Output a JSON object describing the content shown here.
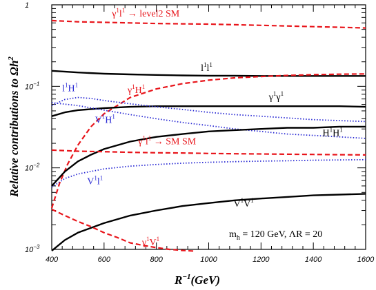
{
  "chart_data": {
    "type": "line",
    "xlabel": "R",
    "xlabel_exp": "−1",
    "xlabel_unit": "(GeV)",
    "ylabel": "Relative contributions to Ωh",
    "ylabel_exp": "2",
    "xlim": [
      400,
      1600
    ],
    "ylim": [
      0.001,
      1
    ],
    "y_scale": "log",
    "x_ticks": [
      400,
      600,
      800,
      1000,
      1200,
      1400,
      1600
    ],
    "y_ticks": [
      {
        "value": 1,
        "base": "1",
        "exp": ""
      },
      {
        "value": 0.1,
        "base": "10",
        "exp": "−1"
      },
      {
        "value": 0.01,
        "base": "10",
        "exp": "−2"
      },
      {
        "value": 0.001,
        "base": "10",
        "exp": "−3"
      }
    ],
    "annotation": {
      "text_main": "m",
      "text_sub": "h",
      "text_rest": " = 120 GeV, ΛR = 20"
    },
    "series": [
      {
        "name": "γ¹l¹ → level2 SM",
        "label_parts": [
          [
            "γ",
            ""
          ],
          [
            "1",
            "sup"
          ],
          [
            "l",
            ""
          ],
          [
            "1",
            "sup"
          ],
          [
            " → level2 SM",
            ""
          ]
        ],
        "label_at": [
          630,
          0.72
        ],
        "color": "#e8141a",
        "style": "dashed",
        "x": [
          400,
          500,
          600,
          700,
          800,
          900,
          1000,
          1100,
          1200,
          1300,
          1400,
          1500,
          1600
        ],
        "values": [
          0.64,
          0.62,
          0.61,
          0.6,
          0.59,
          0.585,
          0.58,
          0.57,
          0.56,
          0.55,
          0.54,
          0.53,
          0.52
        ]
      },
      {
        "name": "l¹l¹",
        "label_parts": [
          [
            "l",
            ""
          ],
          [
            "1",
            "sup"
          ],
          [
            "l",
            ""
          ],
          [
            "1",
            "sup"
          ]
        ],
        "label_at": [
          970,
          0.155
        ],
        "color": "#000000",
        "style": "solid",
        "x": [
          400,
          500,
          600,
          700,
          800,
          900,
          1000,
          1100,
          1200,
          1300,
          1400,
          1500,
          1600
        ],
        "values": [
          0.155,
          0.148,
          0.143,
          0.14,
          0.138,
          0.136,
          0.135,
          0.135,
          0.134,
          0.134,
          0.134,
          0.134,
          0.134
        ]
      },
      {
        "name": "γ¹H¹",
        "label_parts": [
          [
            "γ",
            ""
          ],
          [
            "1",
            "sup"
          ],
          [
            "H",
            ""
          ],
          [
            "1",
            "sup"
          ]
        ],
        "label_at": [
          690,
          0.083
        ],
        "color": "#e8141a",
        "style": "dashed",
        "x": [
          400,
          430,
          460,
          500,
          550,
          600,
          700,
          800,
          900,
          1000,
          1100,
          1200,
          1300,
          1400,
          1500,
          1600
        ],
        "values": [
          0.0032,
          0.0065,
          0.011,
          0.019,
          0.032,
          0.046,
          0.073,
          0.093,
          0.108,
          0.119,
          0.127,
          0.132,
          0.136,
          0.139,
          0.141,
          0.142
        ]
      },
      {
        "name": "γ¹γ¹",
        "label_parts": [
          [
            "γ",
            ""
          ],
          [
            "1",
            "sup"
          ],
          [
            "γ",
            ""
          ],
          [
            "1",
            "sup"
          ]
        ],
        "label_at": [
          1230,
          0.068
        ],
        "color": "#000000",
        "style": "solid",
        "x": [
          400,
          450,
          500,
          600,
          700,
          800,
          900,
          1000,
          1100,
          1200,
          1300,
          1400,
          1500,
          1600
        ],
        "values": [
          0.043,
          0.048,
          0.051,
          0.054,
          0.056,
          0.057,
          0.057,
          0.057,
          0.057,
          0.057,
          0.057,
          0.057,
          0.057,
          0.056
        ]
      },
      {
        "name": "l¹H¹",
        "label_parts": [
          [
            "l",
            ""
          ],
          [
            "1",
            "sup"
          ],
          [
            "H",
            ""
          ],
          [
            "1",
            "sup"
          ]
        ],
        "label_at": [
          440,
          0.087
        ],
        "color": "#2a2ad4",
        "style": "dotted",
        "x": [
          400,
          450,
          500,
          550,
          600,
          700,
          800,
          900,
          1000,
          1100,
          1200,
          1300,
          1400,
          1500,
          1600
        ],
        "values": [
          0.058,
          0.069,
          0.073,
          0.071,
          0.067,
          0.061,
          0.056,
          0.052,
          0.048,
          0.045,
          0.043,
          0.041,
          0.039,
          0.038,
          0.037
        ]
      },
      {
        "name": "V¹H¹",
        "label_parts": [
          [
            "V",
            ""
          ],
          [
            "1",
            "sup"
          ],
          [
            "H",
            ""
          ],
          [
            "1",
            "sup"
          ]
        ],
        "label_at": [
          565,
          0.0355
        ],
        "color": "#2a2ad4",
        "style": "dotted",
        "x": [
          400,
          500,
          600,
          700,
          800,
          900,
          1000,
          1100,
          1200,
          1300,
          1400,
          1500,
          1600
        ],
        "values": [
          0.063,
          0.058,
          0.051,
          0.045,
          0.04,
          0.036,
          0.033,
          0.03,
          0.028,
          0.026,
          0.025,
          0.024,
          0.023
        ]
      },
      {
        "name": "H¹H¹",
        "label_parts": [
          [
            "H",
            ""
          ],
          [
            "1",
            "sup"
          ],
          [
            "H",
            ""
          ],
          [
            "1",
            "sup"
          ]
        ],
        "label_at": [
          1435,
          0.0245
        ],
        "color": "#000000",
        "style": "solid",
        "x": [
          400,
          450,
          500,
          550,
          600,
          700,
          800,
          900,
          1000,
          1100,
          1200,
          1300,
          1400,
          1500,
          1600
        ],
        "values": [
          0.006,
          0.009,
          0.012,
          0.0145,
          0.017,
          0.021,
          0.024,
          0.026,
          0.028,
          0.029,
          0.03,
          0.031,
          0.031,
          0.032,
          0.032
        ]
      },
      {
        "name": "γ¹l¹ → SM SM",
        "label_parts": [
          [
            "γ",
            ""
          ],
          [
            "1",
            "sup"
          ],
          [
            "l",
            ""
          ],
          [
            "1",
            "sup"
          ],
          [
            " → SM SM",
            ""
          ]
        ],
        "label_at": [
          730,
          0.0195
        ],
        "color": "#e8141a",
        "style": "dashed",
        "x": [
          400,
          500,
          600,
          700,
          800,
          900,
          1000,
          1100,
          1200,
          1300,
          1400,
          1500,
          1600
        ],
        "values": [
          0.0165,
          0.016,
          0.0158,
          0.0155,
          0.0153,
          0.0152,
          0.015,
          0.0149,
          0.0148,
          0.0147,
          0.0146,
          0.0145,
          0.0144
        ]
      },
      {
        "name": "V¹l¹",
        "label_parts": [
          [
            "V",
            ""
          ],
          [
            "1",
            "sup"
          ],
          [
            "l",
            ""
          ],
          [
            "1",
            "sup"
          ]
        ],
        "label_at": [
          535,
          0.0063
        ],
        "color": "#2a2ad4",
        "style": "dotted",
        "x": [
          400,
          450,
          500,
          600,
          700,
          800,
          900,
          1000,
          1100,
          1200,
          1300,
          1400,
          1500,
          1600
        ],
        "values": [
          0.0058,
          0.0074,
          0.0084,
          0.0097,
          0.0105,
          0.011,
          0.0114,
          0.0117,
          0.0119,
          0.0121,
          0.0122,
          0.0124,
          0.0125,
          0.0126
        ]
      },
      {
        "name": "V¹V¹",
        "label_parts": [
          [
            "V",
            ""
          ],
          [
            "1",
            "sup"
          ],
          [
            "V",
            ""
          ],
          [
            "1",
            "sup"
          ]
        ],
        "label_at": [
          1095,
          0.00335
        ],
        "color": "#000000",
        "style": "solid",
        "x": [
          400,
          450,
          500,
          600,
          700,
          800,
          900,
          1000,
          1100,
          1200,
          1300,
          1400,
          1500,
          1600
        ],
        "values": [
          0.00096,
          0.0013,
          0.0016,
          0.0021,
          0.0026,
          0.003,
          0.0034,
          0.0037,
          0.004,
          0.0042,
          0.0044,
          0.0046,
          0.0047,
          0.0048
        ]
      },
      {
        "name": "γ¹V¹",
        "label_parts": [
          [
            "γ",
            ""
          ],
          [
            "1",
            "sup"
          ],
          [
            "V",
            ""
          ],
          [
            "1",
            "sup"
          ]
        ],
        "label_at": [
          745,
          0.00112
        ],
        "color": "#e8141a",
        "style": "dashed",
        "x": [
          400,
          450,
          500,
          550,
          600,
          650,
          700,
          750,
          800,
          850,
          900,
          950
        ],
        "values": [
          0.0031,
          0.0026,
          0.0022,
          0.0019,
          0.0016,
          0.0014,
          0.0012,
          0.00112,
          0.00105,
          0.001,
          0.00097,
          0.00095
        ]
      }
    ]
  }
}
